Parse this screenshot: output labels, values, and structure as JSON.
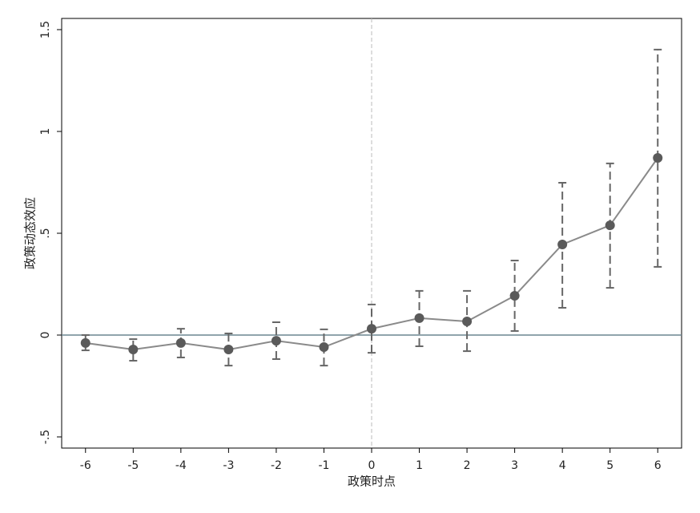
{
  "chart_data": {
    "type": "errorbar-line",
    "x_label": "政策时点",
    "y_label": "政策动态效应",
    "x": [
      -6,
      -5,
      -4,
      -3,
      -2,
      -1,
      0,
      1,
      2,
      3,
      4,
      5,
      6
    ],
    "series": [
      {
        "color": "#5a5a5a",
        "values": [
          -0.039,
          -0.071,
          -0.039,
          -0.071,
          -0.028,
          -0.059,
          0.031,
          0.083,
          0.067,
          0.193,
          0.445,
          0.539,
          0.87
        ],
        "ci_lower": [
          -0.075,
          -0.126,
          -0.11,
          -0.15,
          -0.118,
          -0.15,
          -0.087,
          -0.055,
          -0.079,
          0.02,
          0.134,
          0.232,
          0.335
        ],
        "ci_upper": [
          0,
          -0.02,
          0.031,
          0.008,
          0.063,
          0.028,
          0.15,
          0.217,
          0.217,
          0.366,
          0.748,
          0.843,
          1.402
        ]
      }
    ],
    "xlim": [
      -6.5,
      6.5
    ],
    "ylim": [
      -0.555,
      1.555
    ],
    "xticks": [
      -6,
      -5,
      -4,
      -3,
      -2,
      -1,
      0,
      1,
      2,
      3,
      4,
      5,
      6
    ],
    "yticks": [
      {
        "value": -0.5,
        "label": "-.5"
      },
      0,
      {
        "value": 0.5,
        "label": ".5"
      },
      1,
      1.5
    ],
    "xline": 0,
    "yline": 0
  }
}
